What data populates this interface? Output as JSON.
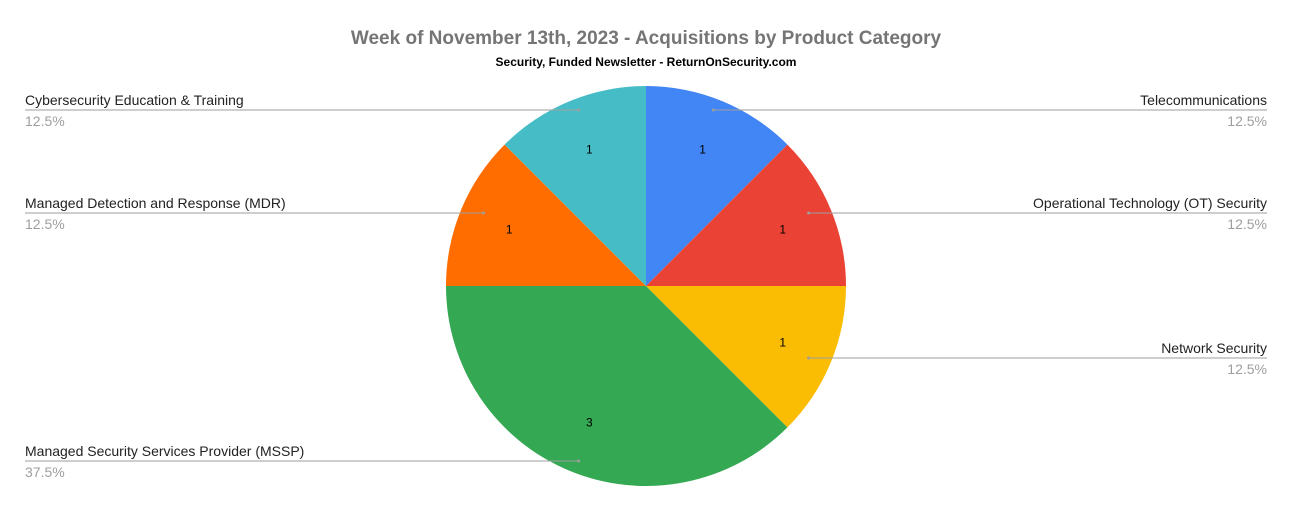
{
  "chart_data": {
    "type": "pie",
    "title": "Week of November 13th, 2023 - Acquisitions by Product Category",
    "subtitle": "Security, Funded Newsletter - ReturnOnSecurity.com",
    "slices": [
      {
        "label": "Telecommunications",
        "value": 1,
        "percent": "12.5%",
        "color": "#4285F4",
        "side": "right"
      },
      {
        "label": "Operational Technology (OT) Security",
        "value": 1,
        "percent": "12.5%",
        "color": "#EA4335",
        "side": "right"
      },
      {
        "label": "Network Security",
        "value": 1,
        "percent": "12.5%",
        "color": "#FBBC04",
        "side": "right"
      },
      {
        "label": "Managed Security Services Provider (MSSP)",
        "value": 3,
        "percent": "37.5%",
        "color": "#34A853",
        "side": "left"
      },
      {
        "label": "Managed Detection and Response (MDR)",
        "value": 1,
        "percent": "12.5%",
        "color": "#FF6D01",
        "side": "left"
      },
      {
        "label": "Cybersecurity Education & Training",
        "value": 1,
        "percent": "12.5%",
        "color": "#46BDC6",
        "side": "left"
      }
    ],
    "legend": "leader-lines"
  }
}
